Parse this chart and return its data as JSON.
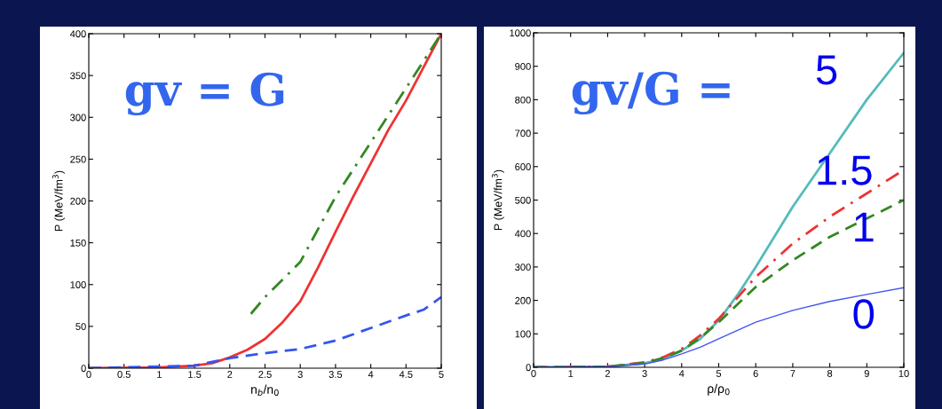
{
  "chart_data": [
    {
      "type": "line",
      "xlabel": "n$_{b}$/n$_{0}$",
      "ylabel": "P (MeV/fm$^{3}$)",
      "annotations": [
        "gv = G"
      ],
      "xlim": [
        0,
        5
      ],
      "ylim": [
        0,
        400
      ],
      "xticks": [
        0,
        0.5,
        1,
        1.5,
        2,
        2.5,
        3,
        3.5,
        4,
        4.5,
        5
      ],
      "yticks": [
        0,
        50,
        100,
        150,
        200,
        250,
        300,
        350,
        400
      ],
      "grid": false,
      "legend": false,
      "series": [
        {
          "color": "#ee3333",
          "line_style": "solid",
          "x": [
            0,
            1,
            1.5,
            1.75,
            2,
            2.25,
            2.5,
            2.75,
            3,
            3.25,
            3.5,
            3.75,
            4,
            4.25,
            4.5,
            4.75,
            5
          ],
          "values": [
            0,
            1,
            3,
            6,
            13,
            22,
            35,
            55,
            80,
            120,
            163,
            205,
            245,
            285,
            320,
            360,
            400
          ]
        },
        {
          "color": "#3355ee",
          "line_style": "dashed",
          "x": [
            0,
            1.5,
            2,
            2.5,
            3,
            3.5,
            4,
            4.5,
            4.75,
            5
          ],
          "values": [
            0,
            3,
            12,
            18,
            23,
            33,
            48,
            63,
            70,
            85
          ]
        },
        {
          "color": "#338822",
          "line_style": "dashdot",
          "x": [
            2.3,
            2.5,
            3,
            3.5,
            4,
            4.5,
            5
          ],
          "values": [
            65,
            85,
            127,
            205,
            270,
            335,
            400
          ]
        }
      ]
    },
    {
      "type": "line",
      "xlabel": "ρ/ρ$_{0}$",
      "ylabel": "P (MeV/fm$^{3}$)",
      "annotations": [
        "gv/G ="
      ],
      "xlim": [
        0,
        10
      ],
      "ylim": [
        0,
        1000
      ],
      "xticks": [
        0,
        1,
        2,
        3,
        4,
        5,
        6,
        7,
        8,
        9,
        10
      ],
      "yticks": [
        0,
        100,
        200,
        300,
        400,
        500,
        600,
        700,
        800,
        900,
        1000
      ],
      "grid": false,
      "legend": false,
      "series": [
        {
          "name": "5",
          "color": "#55bbbb",
          "line_style": "solid",
          "x": [
            0,
            2,
            3,
            3.5,
            4,
            4.5,
            5,
            5.5,
            6,
            7,
            8,
            9,
            10
          ],
          "values": [
            0,
            2,
            12,
            25,
            50,
            85,
            140,
            215,
            300,
            480,
            640,
            800,
            940
          ]
        },
        {
          "name": "1.5",
          "color": "#ee3333",
          "line_style": "dashdot",
          "x": [
            0,
            2,
            3,
            3.5,
            4,
            4.5,
            5,
            6,
            7,
            8,
            9,
            10
          ],
          "values": [
            0,
            2,
            15,
            30,
            55,
            95,
            145,
            270,
            370,
            450,
            520,
            590
          ]
        },
        {
          "name": "1",
          "color": "#338822",
          "line_style": "dashed",
          "x": [
            0,
            2,
            3,
            3.5,
            4,
            4.5,
            5,
            6,
            7,
            8,
            9,
            10
          ],
          "values": [
            0,
            2,
            13,
            28,
            50,
            88,
            135,
            240,
            320,
            390,
            445,
            500
          ]
        },
        {
          "name": "0",
          "color": "#4455ee",
          "line_style": "solid",
          "x": [
            0,
            2,
            3,
            3.5,
            4,
            4.5,
            5,
            6,
            7,
            8,
            9,
            10
          ],
          "values": [
            0,
            2,
            10,
            22,
            40,
            60,
            85,
            135,
            170,
            197,
            218,
            238
          ]
        }
      ]
    }
  ]
}
